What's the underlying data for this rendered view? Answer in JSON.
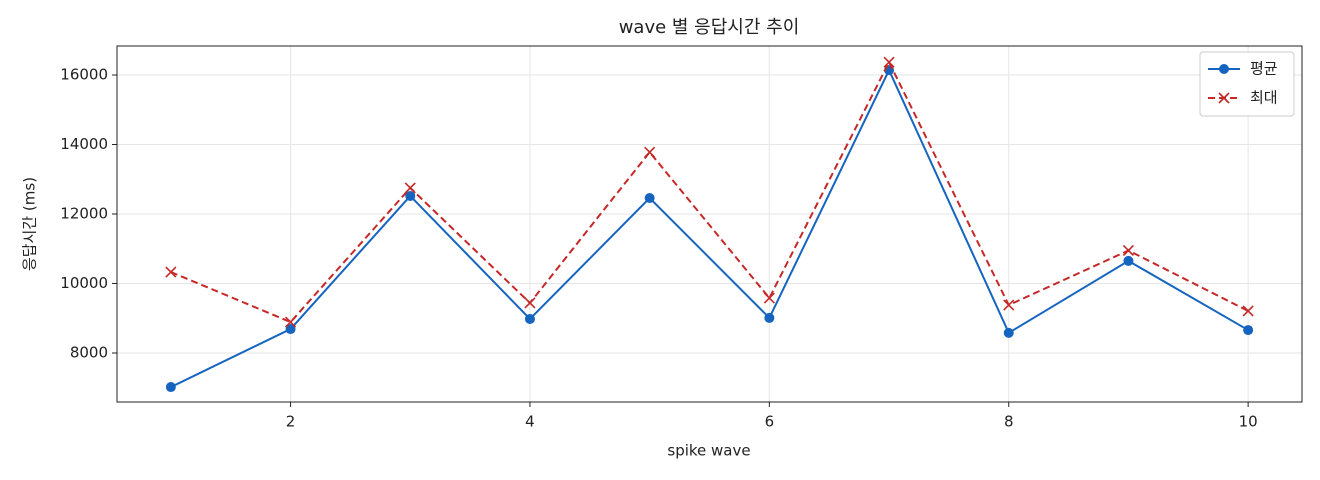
{
  "chart_data": {
    "type": "line",
    "title": "wave 별 응답시간 추이",
    "xlabel": "spike wave",
    "ylabel": "응답시간 (ms)",
    "x": [
      1,
      2,
      3,
      4,
      5,
      6,
      7,
      8,
      9,
      10
    ],
    "series": [
      {
        "name": "평균",
        "color": "#1565c0",
        "marker": "o",
        "linestyle": "solid",
        "values": [
          7020,
          8690,
          12520,
          8980,
          12460,
          9010,
          16140,
          8580,
          10650,
          8660
        ]
      },
      {
        "name": "최대",
        "color": "#c62828",
        "marker": "x",
        "linestyle": "dashed",
        "values": [
          10330,
          8890,
          12750,
          9440,
          13780,
          9580,
          16370,
          9380,
          10950,
          9210
        ]
      }
    ],
    "xlim": [
      0.55,
      10.45
    ],
    "xticks": [
      2,
      4,
      6,
      8,
      10
    ],
    "ylim": [
      6590,
      16835
    ],
    "yticks": [
      8000,
      10000,
      12000,
      14000,
      16000
    ],
    "grid": true,
    "legend": "upper right"
  }
}
